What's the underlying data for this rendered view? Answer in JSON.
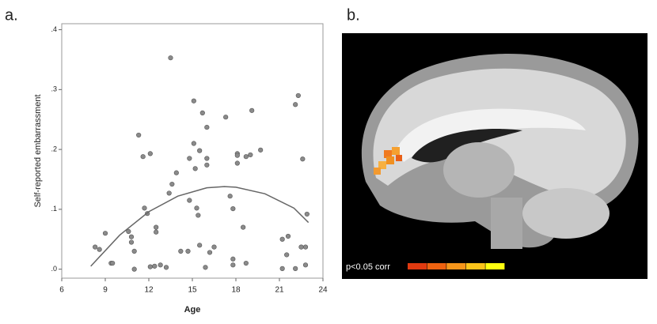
{
  "panel_labels": [
    "a.",
    "b."
  ],
  "chart_data": {
    "type": "scatter",
    "x_label": "Age",
    "y_label": "Self-reported embarrassment",
    "xlim": [
      6,
      24
    ],
    "xticks": [
      6,
      9,
      12,
      15,
      18,
      21,
      24
    ],
    "ylim": [
      -0.015,
      0.41
    ],
    "yticks": [
      {
        "value": 0,
        "label": ".0"
      },
      {
        "value": 0.1,
        "label": ".1"
      },
      {
        "value": 0.2,
        "label": ".2"
      },
      {
        "value": 0.3,
        "label": ".3"
      },
      {
        "value": 0.4,
        "label": ".4"
      }
    ],
    "color": "#8a8a8a",
    "x": [
      8.3,
      8.6,
      9.0,
      9.4,
      9.5,
      10.6,
      10.8,
      10.8,
      11.0,
      11.0,
      11.3,
      11.6,
      11.7,
      12.1,
      11.9,
      12.1,
      12.4,
      12.5,
      12.5,
      12.8,
      13.2,
      13.4,
      13.5,
      13.6,
      13.9,
      14.2,
      14.7,
      14.8,
      14.8,
      15.1,
      15.1,
      15.2,
      15.3,
      15.4,
      15.5,
      15.5,
      15.7,
      15.9,
      16.0,
      16.0,
      16.0,
      16.2,
      16.5,
      17.3,
      17.6,
      17.8,
      17.8,
      17.8,
      18.1,
      18.1,
      18.1,
      18.5,
      18.7,
      18.7,
      19.1,
      19.0,
      19.7,
      21.2,
      21.2,
      21.5,
      21.6,
      22.1,
      22.3,
      22.1,
      22.5,
      22.6,
      22.8,
      22.8,
      22.9
    ],
    "values": [
      0.037,
      0.033,
      0.06,
      0.01,
      0.01,
      0.063,
      0.054,
      0.045,
      0.03,
      0.0,
      0.224,
      0.188,
      0.102,
      0.193,
      0.093,
      0.004,
      0.005,
      0.07,
      0.062,
      0.007,
      0.003,
      0.127,
      0.353,
      0.142,
      0.161,
      0.03,
      0.03,
      0.185,
      0.115,
      0.21,
      0.281,
      0.168,
      0.102,
      0.09,
      0.198,
      0.04,
      0.261,
      0.003,
      0.237,
      0.185,
      0.174,
      0.028,
      0.037,
      0.254,
      0.122,
      0.017,
      0.101,
      0.007,
      0.193,
      0.177,
      0.19,
      0.07,
      0.188,
      0.01,
      0.265,
      0.191,
      0.199,
      0.001,
      0.05,
      0.024,
      0.055,
      0.275,
      0.29,
      0.001,
      0.037,
      0.184,
      0.037,
      0.007,
      0.092
    ],
    "fit": {
      "color": "#666666",
      "x": [
        8,
        10,
        12,
        14,
        16,
        17.2,
        18,
        20,
        22,
        23
      ],
      "values": [
        0.005,
        0.057,
        0.096,
        0.122,
        0.136,
        0.138,
        0.137,
        0.126,
        0.102,
        0.078
      ]
    }
  },
  "brain_panel": {
    "legend_label": "p<0.05 corr",
    "colorbar_colors": [
      "#e03a10",
      "#ee6210",
      "#f5951a",
      "#fbc41a",
      "#ffff10"
    ]
  }
}
